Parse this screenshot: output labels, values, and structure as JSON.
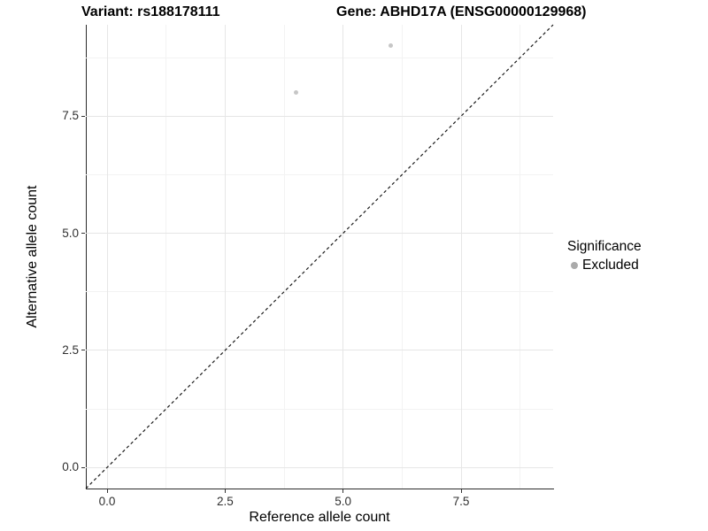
{
  "header": {
    "title_variant": "Variant: rs188178111",
    "title_gene": "Gene: ABHD17A (ENSG00000129968)"
  },
  "chart_data": {
    "type": "scatter",
    "title_left": "Variant: rs188178111",
    "title_right": "Gene: ABHD17A (ENSG00000129968)",
    "xlabel": "Reference allele count",
    "ylabel": "Alternative allele count",
    "xlim": [
      -0.45,
      9.45
    ],
    "ylim": [
      -0.45,
      9.45
    ],
    "x_ticks": {
      "values": [
        0,
        2.5,
        5,
        7.5
      ],
      "labels": [
        "0.0",
        "2.5",
        "5.0",
        "7.5"
      ]
    },
    "y_ticks": {
      "values": [
        0,
        2.5,
        5,
        7.5
      ],
      "labels": [
        "0.0",
        "2.5",
        "5.0",
        "7.5"
      ]
    },
    "x_minor_ticks": [
      1.25,
      3.75,
      6.25,
      8.75
    ],
    "y_minor_ticks": [
      1.25,
      3.75,
      6.25,
      8.75
    ],
    "grid": "major+minor",
    "series": [
      {
        "name": "Excluded",
        "marker": "circle",
        "color": "#c6c6c6",
        "points": [
          [
            4,
            8
          ],
          [
            6,
            9
          ]
        ]
      }
    ],
    "reference_line": {
      "kind": "identity y=x",
      "style": "dashed",
      "color": "#1a1a1a"
    },
    "legend": {
      "title": "Significance",
      "position": "right",
      "entries": [
        {
          "label": "Excluded",
          "color": "#aaaaaa"
        }
      ]
    }
  },
  "colors": {
    "background": "#ffffff",
    "axis_line": "#2b2b2b",
    "grid_major": "#e6e6e6",
    "grid_minor": "#f3f3f3",
    "tick_label": "#303030",
    "point": "#c6c6c6",
    "legend_key": "#aaaaaa"
  }
}
